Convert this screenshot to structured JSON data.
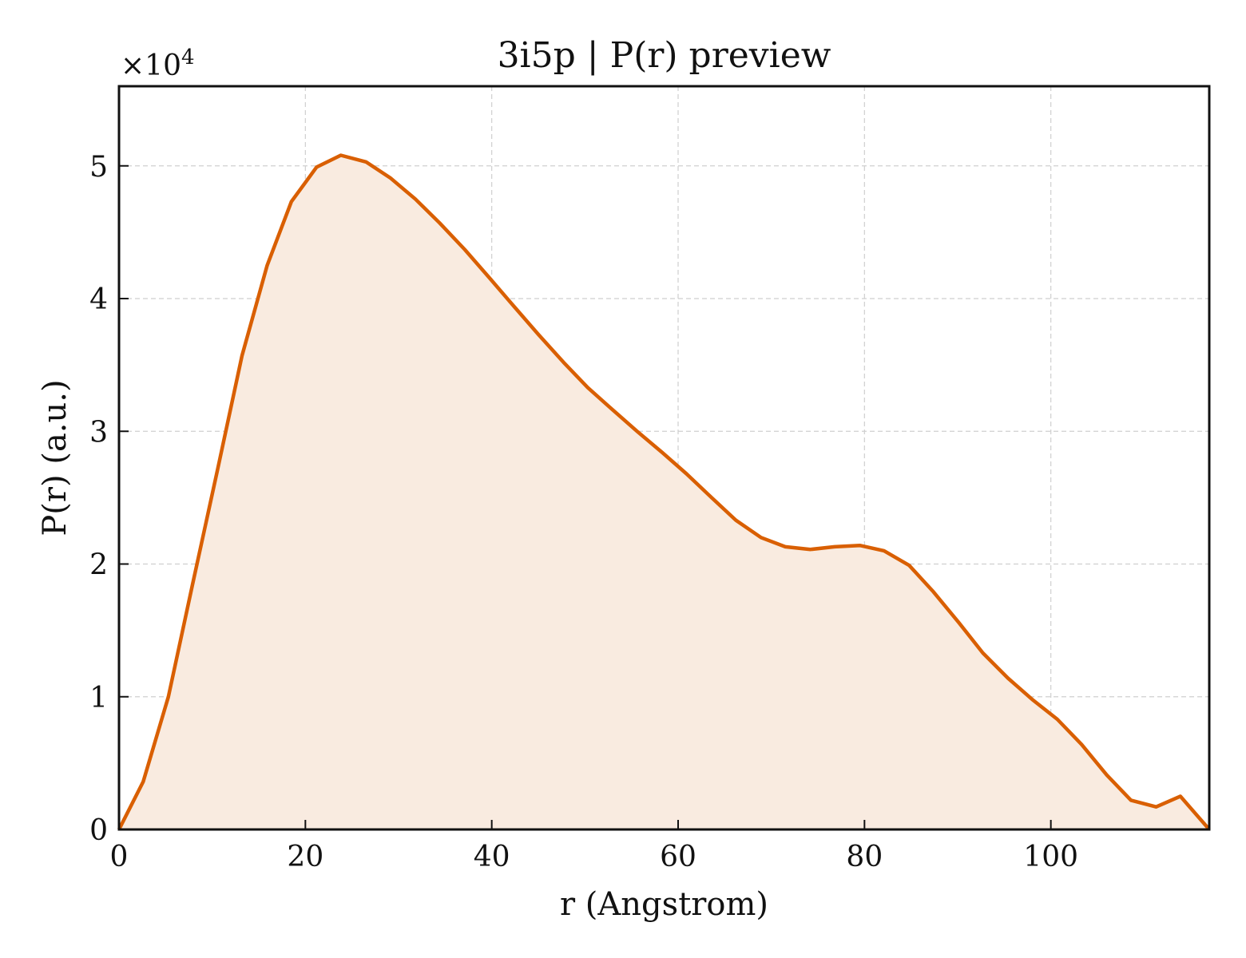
{
  "chart_data": {
    "type": "area",
    "title": "3i5p | P(r) preview",
    "xlabel": "r (Angstrom)",
    "ylabel": "P(r) (a.u.)",
    "y_multiplier_label": "×10",
    "y_multiplier_exponent": "4",
    "xlim": [
      0,
      117
    ],
    "ylim": [
      0,
      56000
    ],
    "x_ticks": [
      0,
      20,
      40,
      60,
      80,
      100
    ],
    "y_ticks": [
      0,
      10000,
      20000,
      30000,
      40000,
      50000
    ],
    "y_tick_labels": [
      "0",
      "1",
      "2",
      "3",
      "4",
      "5"
    ],
    "grid": true,
    "series": [
      {
        "color": "#d95f02",
        "fill_color": "#f9ebe0",
        "x": [
          0,
          2.6,
          5.3,
          7.9,
          10.6,
          13.2,
          15.9,
          18.5,
          21.2,
          23.8,
          26.5,
          29.1,
          31.8,
          34.4,
          37.1,
          39.7,
          42.4,
          45.0,
          47.7,
          50.3,
          53.0,
          55.6,
          58.3,
          60.9,
          63.6,
          66.2,
          68.9,
          71.5,
          74.2,
          76.8,
          79.5,
          82.1,
          84.8,
          87.4,
          90.1,
          92.7,
          95.4,
          98.0,
          100.7,
          103.3,
          106.0,
          108.6,
          111.3,
          113.9,
          117.0
        ],
        "y": [
          0,
          3600,
          10000,
          18500,
          27200,
          35700,
          42500,
          47300,
          49900,
          50800,
          50300,
          49100,
          47500,
          45700,
          43700,
          41600,
          39400,
          37300,
          35200,
          33300,
          31600,
          30000,
          28400,
          26800,
          25000,
          23300,
          22000,
          21300,
          21100,
          21300,
          21400,
          21000,
          19900,
          17900,
          15600,
          13300,
          11400,
          9800,
          8300,
          6400,
          4100,
          2200,
          1700,
          2500,
          0
        ]
      }
    ]
  }
}
